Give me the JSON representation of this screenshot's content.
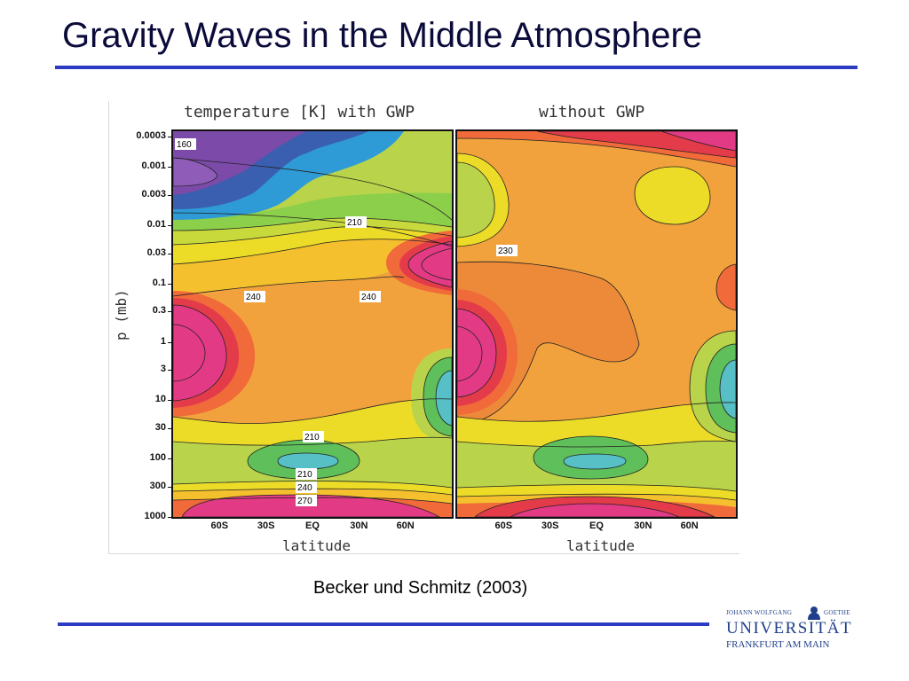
{
  "slide": {
    "title": "Gravity Waves in the Middle Atmosphere",
    "caption": "Becker und Schmitz (2003)"
  },
  "logo": {
    "line1_left": "JOHANN WOLFGANG",
    "line1_right": "GOETHE",
    "name": "UNIVERSITÄT",
    "city": "FRANKFURT AM MAIN"
  },
  "colors": {
    "accent_rule": "#2c3cc2",
    "title_text": "#0b0b3b"
  },
  "chart_data": [
    {
      "type": "heatmap",
      "title": "temperature [K] with GWP",
      "xlabel": "latitude",
      "ylabel": "p (mb)",
      "x_ticks": [
        "60S",
        "30S",
        "EQ",
        "30N",
        "60N"
      ],
      "y_ticks": [
        "0.0003",
        "0.001",
        "0.003",
        "0.01",
        "0.03",
        "0.1",
        "0.3",
        "1",
        "3",
        "10",
        "30",
        "100",
        "300",
        "1000"
      ],
      "y_scale": "log",
      "contour_labels": [
        "160",
        "210",
        "240",
        "240",
        "210",
        "210",
        "240",
        "270"
      ]
    },
    {
      "type": "heatmap",
      "title": "without GWP",
      "xlabel": "latitude",
      "x_ticks": [
        "60S",
        "30S",
        "EQ",
        "30N",
        "60N"
      ],
      "y_scale": "log",
      "contour_labels": [
        "230"
      ]
    }
  ]
}
